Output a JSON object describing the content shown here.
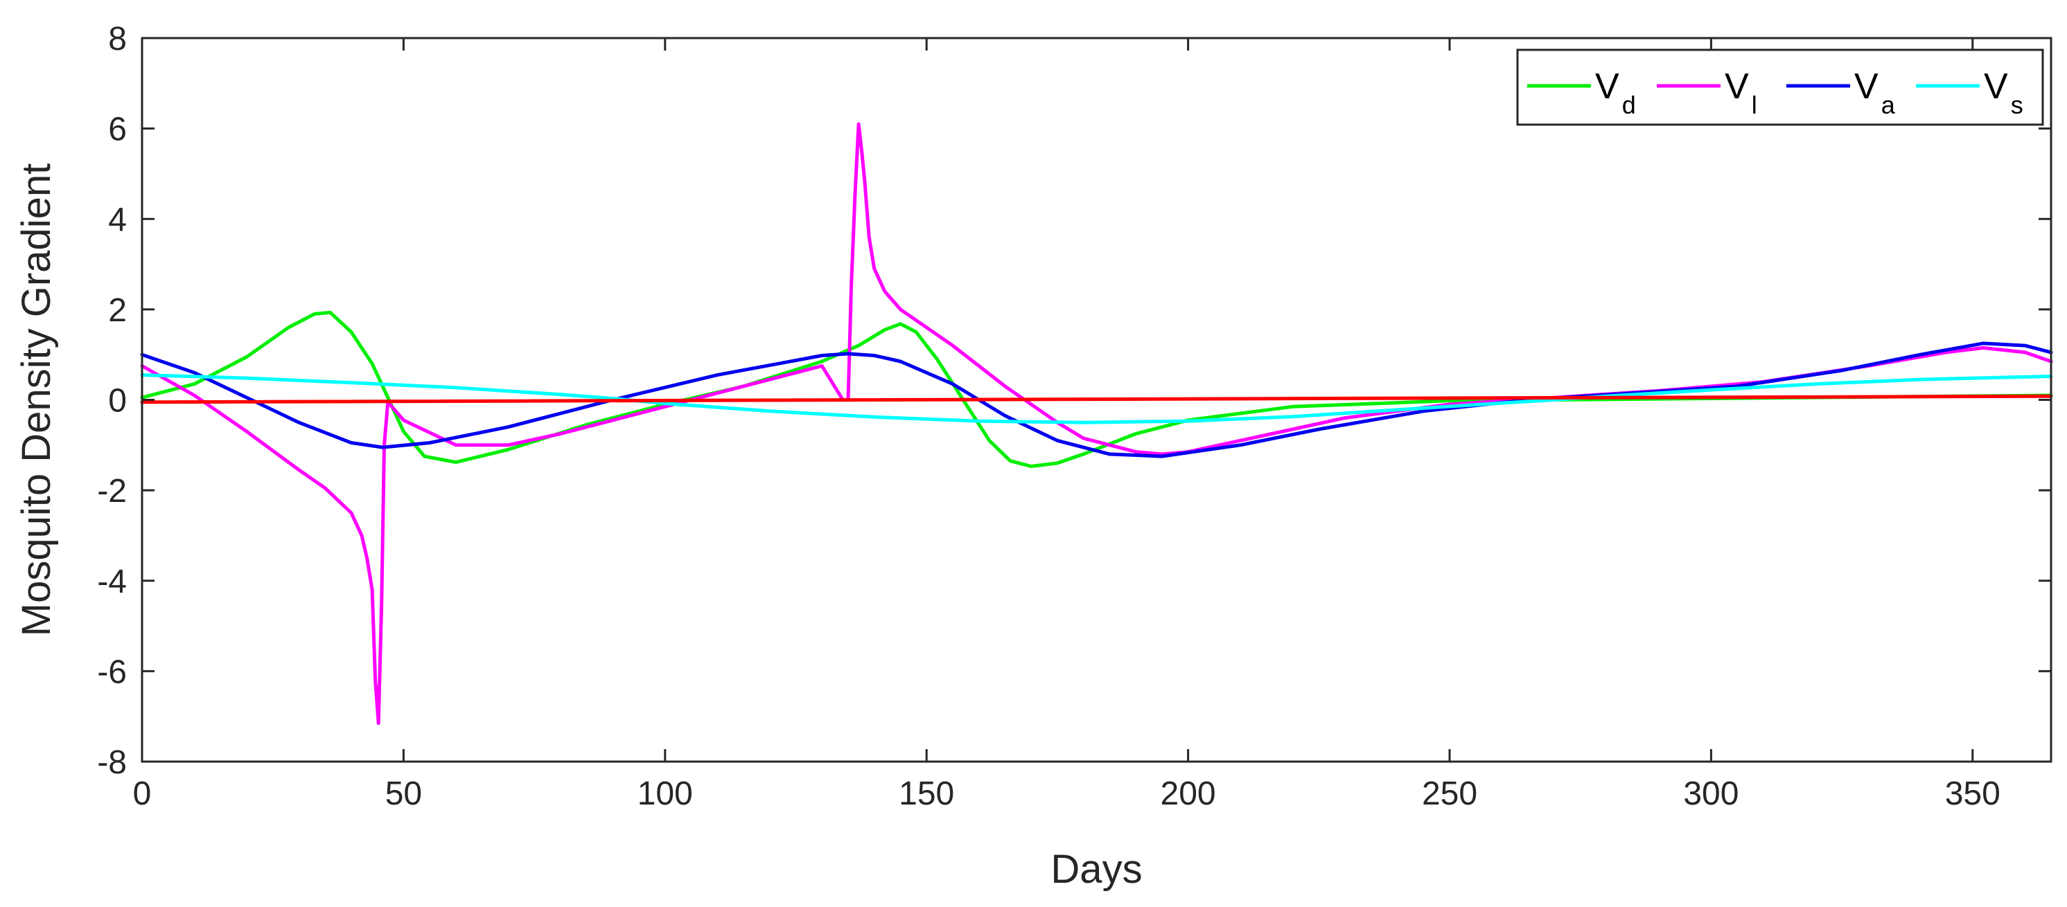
{
  "chart_data": {
    "type": "line",
    "title": "",
    "xlabel": "Days",
    "ylabel": "Mosquito Density Gradient",
    "xlim": [
      0,
      365
    ],
    "ylim": [
      -8,
      8
    ],
    "xticks": [
      0,
      50,
      100,
      150,
      200,
      250,
      300,
      350
    ],
    "yticks": [
      -8,
      -6,
      -4,
      -2,
      0,
      2,
      4,
      6,
      8
    ],
    "grid": false,
    "legend_position": "top-right",
    "series": [
      {
        "name": "V_d",
        "label_main": "V",
        "label_sub": "d",
        "color": "#00ee00",
        "x": [
          0,
          10,
          20,
          28,
          33,
          36,
          40,
          44,
          47,
          50,
          54,
          60,
          70,
          85,
          100,
          115,
          130,
          137,
          142,
          145,
          148,
          152,
          157,
          162,
          166,
          170,
          175,
          180,
          190,
          200,
          220,
          250,
          300,
          365
        ],
        "y": [
          0.05,
          0.35,
          0.95,
          1.6,
          1.9,
          1.93,
          1.5,
          0.8,
          0.05,
          -0.7,
          -1.25,
          -1.38,
          -1.1,
          -0.55,
          -0.1,
          0.3,
          0.85,
          1.2,
          1.55,
          1.68,
          1.5,
          0.9,
          0.0,
          -0.9,
          -1.35,
          -1.47,
          -1.4,
          -1.2,
          -0.75,
          -0.45,
          -0.15,
          -0.02,
          0.03,
          0.1
        ]
      },
      {
        "name": "V_l",
        "label_main": "V",
        "label_sub": "l",
        "color": "#ff00ff",
        "x": [
          0,
          10,
          20,
          30,
          35,
          40,
          42,
          43,
          44,
          44.6,
          45.2,
          45.8,
          46.3,
          47,
          50,
          60,
          70,
          80,
          90,
          100,
          110,
          120,
          130,
          134,
          135,
          135.6,
          136.3,
          137,
          137.6,
          138.2,
          139,
          140,
          142,
          145,
          150,
          155,
          160,
          165,
          170,
          175,
          180,
          190,
          195,
          200,
          210,
          220,
          230,
          250,
          270,
          290,
          310,
          330,
          345,
          352,
          360,
          365
        ],
        "y": [
          0.75,
          0.1,
          -0.7,
          -1.55,
          -1.95,
          -2.5,
          -3.0,
          -3.5,
          -4.2,
          -6.2,
          -7.15,
          -4.5,
          -1.0,
          -0.05,
          -0.45,
          -1.0,
          -1.0,
          -0.75,
          -0.45,
          -0.15,
          0.15,
          0.45,
          0.75,
          0.0,
          0.0,
          2.5,
          4.5,
          6.1,
          5.5,
          4.8,
          3.6,
          2.9,
          2.4,
          2.0,
          1.6,
          1.2,
          0.75,
          0.3,
          -0.1,
          -0.5,
          -0.85,
          -1.15,
          -1.2,
          -1.15,
          -0.9,
          -0.65,
          -0.4,
          -0.1,
          0.05,
          0.2,
          0.4,
          0.75,
          1.05,
          1.15,
          1.05,
          0.85
        ]
      },
      {
        "name": "V_a",
        "label_main": "V",
        "label_sub": "a",
        "color": "#0000ee",
        "x": [
          0,
          10,
          20,
          30,
          40,
          46,
          55,
          70,
          90,
          110,
          130,
          135,
          140,
          145,
          155,
          165,
          175,
          185,
          195,
          210,
          225,
          245,
          265,
          285,
          305,
          325,
          340,
          352,
          360,
          365
        ],
        "y": [
          1.0,
          0.6,
          0.05,
          -0.5,
          -0.95,
          -1.05,
          -0.95,
          -0.6,
          0.0,
          0.55,
          0.98,
          1.02,
          0.98,
          0.85,
          0.35,
          -0.35,
          -0.9,
          -1.2,
          -1.25,
          -1.0,
          -0.65,
          -0.25,
          0.0,
          0.15,
          0.3,
          0.65,
          1.0,
          1.25,
          1.2,
          1.05
        ]
      },
      {
        "name": "V_s",
        "label_main": "V",
        "label_sub": "s",
        "color": "#00ffff",
        "x": [
          0,
          20,
          40,
          60,
          80,
          90,
          100,
          120,
          140,
          160,
          180,
          200,
          220,
          240,
          260,
          270,
          280,
          300,
          320,
          340,
          365
        ],
        "y": [
          0.55,
          0.48,
          0.38,
          0.27,
          0.12,
          0.03,
          -0.08,
          -0.25,
          -0.38,
          -0.47,
          -0.5,
          -0.47,
          -0.37,
          -0.22,
          -0.07,
          0.0,
          0.08,
          0.22,
          0.35,
          0.45,
          0.52
        ]
      },
      {
        "name": "",
        "color": "#ff0000",
        "x": [
          0,
          365
        ],
        "y": [
          -0.05,
          0.08
        ]
      }
    ]
  }
}
